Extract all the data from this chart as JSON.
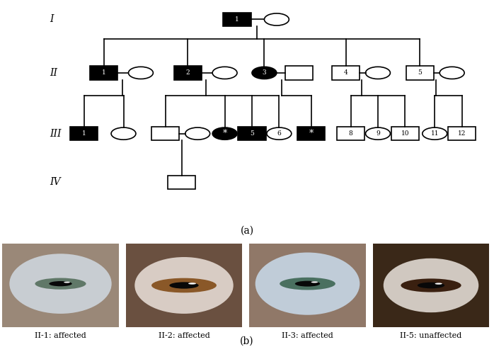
{
  "bg_color": "#ffffff",
  "line_color": "#000000",
  "filled_color": "#000000",
  "unfilled_color": "#ffffff",
  "eye_labels": [
    "II-1: affected",
    "II-2: affected",
    "II-3: affected",
    "II-5: unaffected"
  ],
  "label_a": "(a)",
  "label_b": "(b)",
  "gen_labels": [
    "I",
    "II",
    "III",
    "IV"
  ],
  "eye_bg_colors": [
    "#8a7060",
    "#7a6050",
    "#8a7060",
    "#4a3020"
  ],
  "eye1_sclera": "#c8cdd0",
  "eye1_iris": "#5a7060",
  "eye2_iris": "#7a5030",
  "eye3_sclera": "#c0ccd8",
  "eye3_iris": "#4a6858",
  "eye4_iris": "#3a2010"
}
